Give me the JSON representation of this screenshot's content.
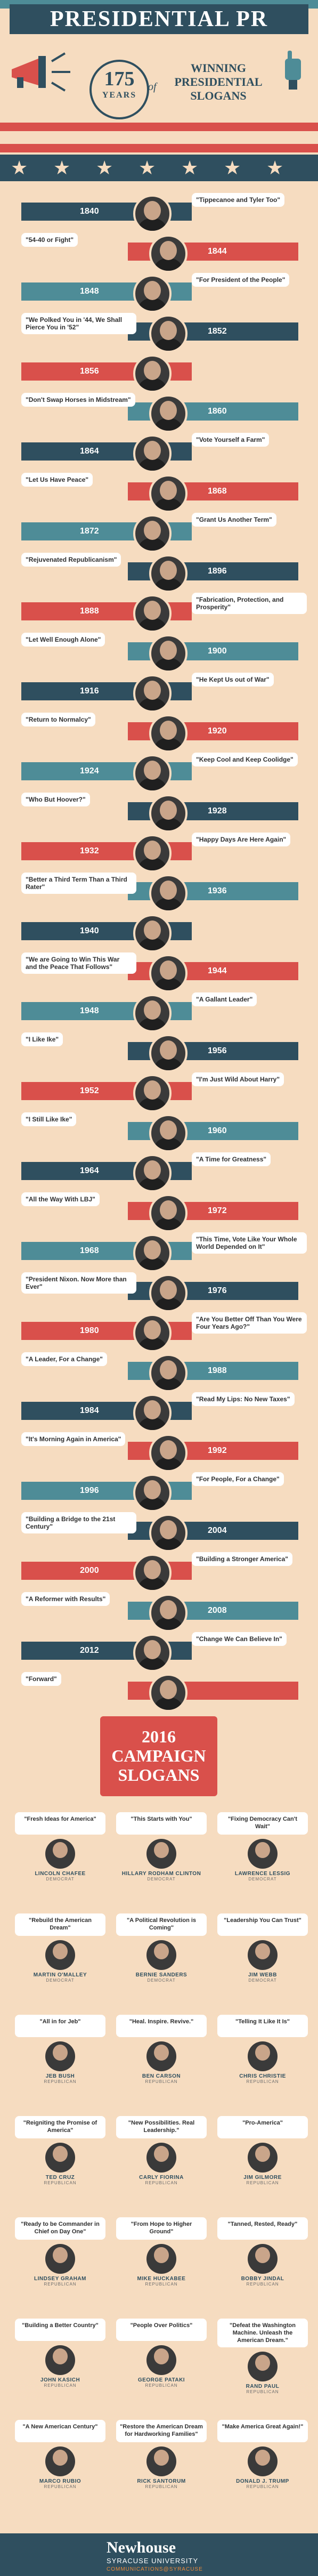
{
  "header": {
    "title": "PRESIDENTIAL PR",
    "years_number": "175",
    "years_label": "YEARS",
    "of_label": "of",
    "subtitle_line1": "WINNING",
    "subtitle_line2": "PRESIDENTIAL",
    "subtitle_line3": "SLOGANS"
  },
  "timeline": [
    {
      "year": "1840",
      "slogan": "\"Tippecanoe and Tyler Too\""
    },
    {
      "year": "1844",
      "slogan": "\"54-40 or Fight\""
    },
    {
      "year": "1848",
      "slogan": "\"For President of the People\""
    },
    {
      "year": "1852",
      "slogan": "\"We Polked You in '44, We Shall Pierce You in '52\""
    },
    {
      "year": "1856",
      "slogan": ""
    },
    {
      "year": "1860",
      "slogan": "\"Don't Swap Horses in Midstream\""
    },
    {
      "year": "1864",
      "slogan": "\"Vote Yourself a Farm\""
    },
    {
      "year": "1868",
      "slogan": "\"Let Us Have Peace\""
    },
    {
      "year": "1872",
      "slogan": "\"Grant Us Another Term\""
    },
    {
      "year": "1896",
      "slogan": "\"Rejuvenated Republicanism\""
    },
    {
      "year": "1888",
      "slogan": "\"Fabrication, Protection, and Prosperity\""
    },
    {
      "year": "1900",
      "slogan": "\"Let Well Enough Alone\""
    },
    {
      "year": "1916",
      "slogan": "\"He Kept Us out of War\""
    },
    {
      "year": "1920",
      "slogan": "\"Return to Normalcy\""
    },
    {
      "year": "1924",
      "slogan": "\"Keep Cool and Keep Coolidge\""
    },
    {
      "year": "1928",
      "slogan": "\"Who But Hoover?\""
    },
    {
      "year": "1932",
      "slogan": "\"Happy Days Are Here Again\""
    },
    {
      "year": "1936",
      "slogan": "\"Better a Third Term Than a Third Rater\""
    },
    {
      "year": "1940",
      "slogan": ""
    },
    {
      "year": "1944",
      "slogan": "\"We are Going to Win This War and the Peace That Follows\""
    },
    {
      "year": "1948",
      "slogan": "\"A Gallant Leader\""
    },
    {
      "year": "1956",
      "slogan": "\"I Like Ike\""
    },
    {
      "year": "1952",
      "slogan": "\"I'm Just Wild About Harry\""
    },
    {
      "year": "1960",
      "slogan": "\"I Still Like Ike\""
    },
    {
      "year": "1964",
      "slogan": "\"A Time for Greatness\""
    },
    {
      "year": "1972",
      "slogan": "\"All the Way With LBJ\""
    },
    {
      "year": "1968",
      "slogan": "\"This Time, Vote Like Your Whole World Depended on It\""
    },
    {
      "year": "1976",
      "slogan": "\"President Nixon. Now More than Ever\""
    },
    {
      "year": "1980",
      "slogan": "\"Are You Better Off Than You Were Four Years Ago?\""
    },
    {
      "year": "1988",
      "slogan": "\"A Leader, For a Change\""
    },
    {
      "year": "1984",
      "slogan": "\"Read My Lips: No New Taxes\""
    },
    {
      "year": "1992",
      "slogan": "\"It's Morning Again in America\""
    },
    {
      "year": "1996",
      "slogan": "\"For People, For a Change\""
    },
    {
      "year": "2004",
      "slogan": "\"Building a Bridge to the 21st Century\""
    },
    {
      "year": "2000",
      "slogan": "\"Building a Stronger America\""
    },
    {
      "year": "2008",
      "slogan": "\"A Reformer with Results\""
    },
    {
      "year": "2012",
      "slogan": "\"Change We Can Believe In\""
    },
    {
      "year": "",
      "slogan": "\"Forward\""
    }
  ],
  "campaign": {
    "title_line1": "2016",
    "title_line2": "CAMPAIGN",
    "title_line3": "SLOGANS",
    "candidates": [
      {
        "slogan": "\"Fresh Ideas for America\"",
        "name": "LINCOLN CHAFEE",
        "party": "DEMOCRAT"
      },
      {
        "slogan": "\"This Starts with You\"",
        "name": "HILLARY RODHAM CLINTON",
        "party": "DEMOCRAT"
      },
      {
        "slogan": "\"Fixing Democracy Can't Wait\"",
        "name": "LAWRENCE LESSIG",
        "party": "DEMOCRAT"
      },
      {
        "slogan": "\"Rebuild the American Dream\"",
        "name": "MARTIN O'MALLEY",
        "party": "DEMOCRAT"
      },
      {
        "slogan": "\"A Political Revolution is Coming\"",
        "name": "BERNIE SANDERS",
        "party": "DEMOCRAT"
      },
      {
        "slogan": "\"Leadership You Can Trust\"",
        "name": "JIM WEBB",
        "party": "DEMOCRAT"
      },
      {
        "slogan": "\"All in for Jeb\"",
        "name": "JEB BUSH",
        "party": "REPUBLICAN"
      },
      {
        "slogan": "\"Heal. Inspire. Revive.\"",
        "name": "BEN CARSON",
        "party": "REPUBLICAN"
      },
      {
        "slogan": "\"Telling It Like It Is\"",
        "name": "CHRIS CHRISTIE",
        "party": "REPUBLICAN"
      },
      {
        "slogan": "\"Reigniting the Promise of America\"",
        "name": "TED CRUZ",
        "party": "REPUBLICAN"
      },
      {
        "slogan": "\"New Possibilities. Real Leadership.\"",
        "name": "CARLY FIORINA",
        "party": "REPUBLICAN"
      },
      {
        "slogan": "\"Pro-America\"",
        "name": "JIM GILMORE",
        "party": "REPUBLICAN"
      },
      {
        "slogan": "\"Ready to be Commander in Chief on Day One\"",
        "name": "LINDSEY GRAHAM",
        "party": "REPUBLICAN"
      },
      {
        "slogan": "\"From Hope to Higher Ground\"",
        "name": "MIKE HUCKABEE",
        "party": "REPUBLICAN"
      },
      {
        "slogan": "\"Tanned, Rested, Ready\"",
        "name": "BOBBY JINDAL",
        "party": "REPUBLICAN"
      },
      {
        "slogan": "\"Building a Better Country\"",
        "name": "JOHN KASICH",
        "party": "REPUBLICAN"
      },
      {
        "slogan": "\"People Over Politics\"",
        "name": "GEORGE PATAKI",
        "party": "REPUBLICAN"
      },
      {
        "slogan": "\"Defeat the Washington Machine. Unleash the American Dream.\"",
        "name": "RAND PAUL",
        "party": "REPUBLICAN"
      },
      {
        "slogan": "\"A New American Century\"",
        "name": "MARCO RUBIO",
        "party": "REPUBLICAN"
      },
      {
        "slogan": "\"Restore the American Dream for Hardworking Families\"",
        "name": "RICK SANTORUM",
        "party": "REPUBLICAN"
      },
      {
        "slogan": "\"Make America Great Again!\"",
        "name": "DONALD J. TRUMP",
        "party": "REPUBLICAN"
      }
    ]
  },
  "footer": {
    "name": "Newhouse",
    "university": "SYRACUSE UNIVERSITY",
    "program": "COMMUNICATIONS@SYRACUSE"
  },
  "colors": {
    "navy": "#2f4f5f",
    "red": "#d9504b",
    "teal": "#4e8c97",
    "cream": "#f6dcc0"
  }
}
